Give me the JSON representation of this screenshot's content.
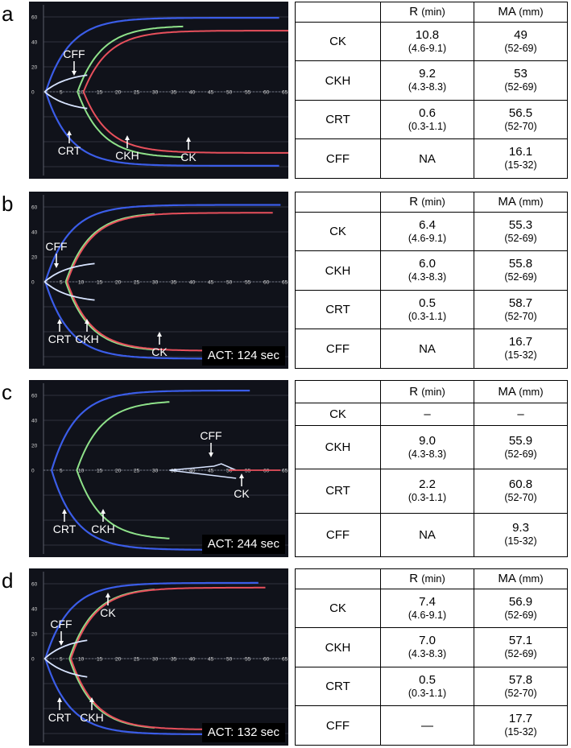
{
  "headers": {
    "r": "R",
    "r_unit": "(min)",
    "ma": "MA",
    "ma_unit": "(mm)"
  },
  "y_ticks": [
    "60",
    "40",
    "20",
    "0"
  ],
  "x_ticks": [
    "5",
    "10",
    "15",
    "20",
    "25",
    "30",
    "35",
    "40",
    "45",
    "50",
    "55",
    "60",
    "65"
  ],
  "colors": {
    "CK": "#e8505c",
    "CKH": "#8fe28a",
    "CRT": "#3b5de8",
    "CFF": "#d8e4ff"
  },
  "panels": [
    {
      "letter": "a",
      "act": "",
      "rows": [
        {
          "name": "CK",
          "r": "10.8",
          "r_range": "(4.6-9.1)",
          "ma": "49",
          "ma_range": "(52-69)"
        },
        {
          "name": "CKH",
          "r": "9.2",
          "r_range": "(4.3-8.3)",
          "ma": "53",
          "ma_range": "(52-69)"
        },
        {
          "name": "CRT",
          "r": "0.6",
          "r_range": "(0.3-1.1)",
          "ma": "56.5",
          "ma_range": "(52-70)"
        },
        {
          "name": "CFF",
          "r": "NA",
          "r_range": "",
          "ma": "16.1",
          "ma_range": "(15-32)"
        }
      ],
      "labels": [
        "CFF",
        "CRT",
        "CKH",
        "CK"
      ]
    },
    {
      "letter": "b",
      "act": "ACT: 124 sec",
      "rows": [
        {
          "name": "CK",
          "r": "6.4",
          "r_range": "(4.6-9.1)",
          "ma": "55.3",
          "ma_range": "(52-69)"
        },
        {
          "name": "CKH",
          "r": "6.0",
          "r_range": "(4.3-8.3)",
          "ma": "55.8",
          "ma_range": "(52-69)"
        },
        {
          "name": "CRT",
          "r": "0.5",
          "r_range": "(0.3-1.1)",
          "ma": "58.7",
          "ma_range": "(52-70)"
        },
        {
          "name": "CFF",
          "r": "NA",
          "r_range": "",
          "ma": "16.7",
          "ma_range": "(15-32)"
        }
      ],
      "labels": [
        "CFF",
        "CRT",
        "CKH",
        "CK"
      ]
    },
    {
      "letter": "c",
      "act": "ACT: 244 sec",
      "rows": [
        {
          "name": "CK",
          "r": "–",
          "r_range": "",
          "ma": "–",
          "ma_range": ""
        },
        {
          "name": "CKH",
          "r": "9.0",
          "r_range": "(4.3-8.3)",
          "ma": "55.9",
          "ma_range": "(52-69)"
        },
        {
          "name": "CRT",
          "r": "2.2",
          "r_range": "(0.3-1.1)",
          "ma": "60.8",
          "ma_range": "(52-70)"
        },
        {
          "name": "CFF",
          "r": "NA",
          "r_range": "",
          "ma": "9.3",
          "ma_range": "(15-32)"
        }
      ],
      "labels": [
        "CFF",
        "CK",
        "CRT",
        "CKH"
      ]
    },
    {
      "letter": "d",
      "act": "ACT: 132 sec",
      "rows": [
        {
          "name": "CK",
          "r": "7.4",
          "r_range": "(4.6-9.1)",
          "ma": "56.9",
          "ma_range": "(52-69)"
        },
        {
          "name": "CKH",
          "r": "7.0",
          "r_range": "(4.3-8.3)",
          "ma": "57.1",
          "ma_range": "(52-69)"
        },
        {
          "name": "CRT",
          "r": "0.5",
          "r_range": "(0.3-1.1)",
          "ma": "57.8",
          "ma_range": "(52-70)"
        },
        {
          "name": "CFF",
          "r": "—",
          "r_range": "",
          "ma": "17.7",
          "ma_range": "(15-32)"
        }
      ],
      "labels": [
        "CFF",
        "CK",
        "CRT",
        "CKH"
      ]
    }
  ]
}
